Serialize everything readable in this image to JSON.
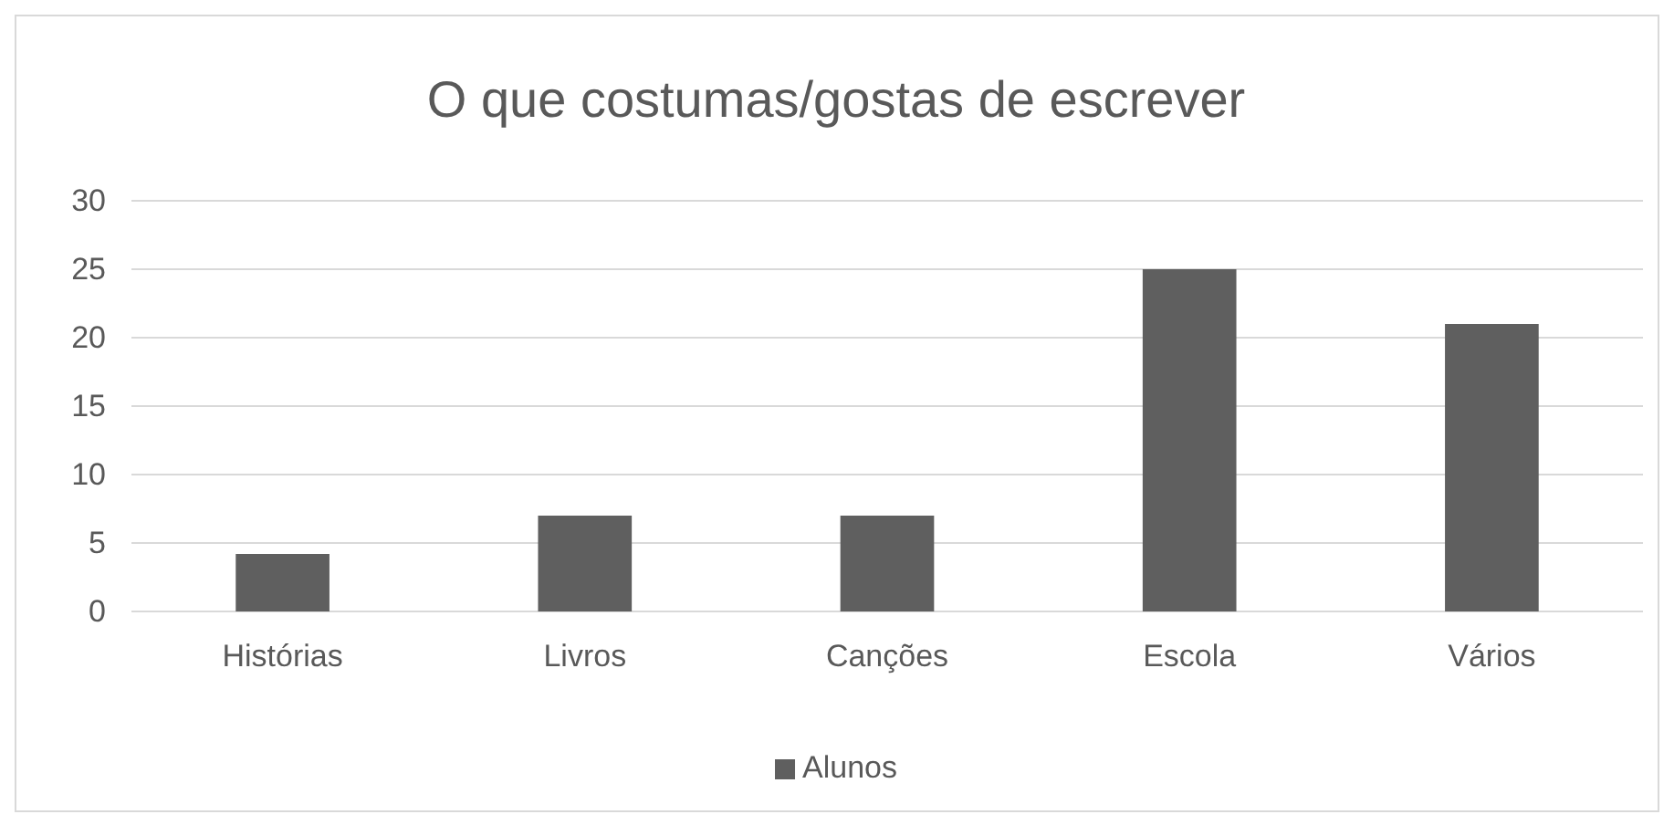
{
  "chart_data": {
    "type": "bar",
    "title": "O que costumas/gostas de escrever",
    "categories": [
      "Histórias",
      "Livros",
      "Canções",
      "Escola",
      "Vários"
    ],
    "series": [
      {
        "name": "Alunos",
        "color": "#5f5f5f",
        "values": [
          4.2,
          7,
          7,
          25,
          21
        ]
      }
    ],
    "ylim": [
      0,
      30
    ],
    "yticks": [
      0,
      5,
      10,
      15,
      20,
      25,
      30
    ],
    "grid": "y",
    "legend": "bottom"
  }
}
